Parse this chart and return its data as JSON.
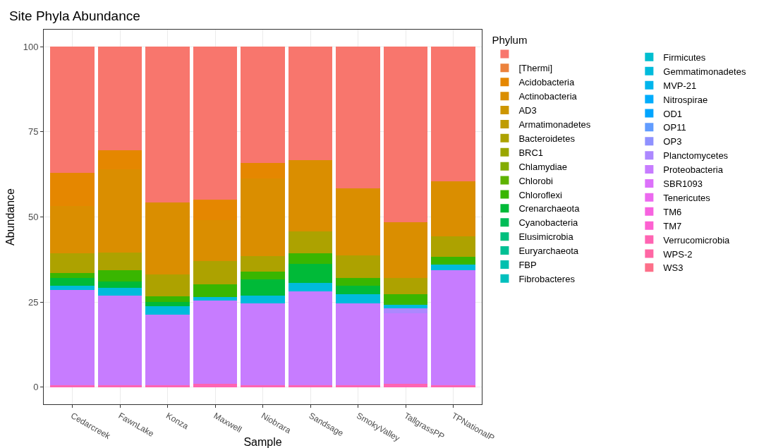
{
  "chart_data": {
    "type": "bar",
    "stacked": true,
    "title": "Site Phyla Abundance",
    "xlabel": "Sample",
    "ylabel": "Abundance",
    "legend_title": "Phylum",
    "legend": "right",
    "grid": true,
    "categories": [
      "Cedarcreek",
      "FawnLake",
      "Konza",
      "Maxwell",
      "Niobrara",
      "Sandsage",
      "SmokyValley",
      "TallgrassPP",
      "TPNationalP"
    ],
    "ylim": [
      -5,
      105
    ],
    "yticks": [
      0,
      25,
      50,
      75,
      100
    ],
    "series": [
      {
        "name": "WS3",
        "color": "#FD6F89",
        "values": [
          null,
          null,
          null,
          null,
          null,
          null,
          null,
          null,
          null
        ]
      },
      {
        "name": "WPS-2",
        "color": "#FF67A4",
        "values": [
          null,
          null,
          null,
          null,
          null,
          null,
          null,
          null,
          null
        ]
      },
      {
        "name": "Verrucomicrobia",
        "color": "#FF64B2",
        "values": [
          0.6,
          0.6,
          0.6,
          1.0,
          0.6,
          0.6,
          0.6,
          1.0,
          0.6
        ]
      },
      {
        "name": "TM7",
        "color": "#FD61D1",
        "values": [
          null,
          null,
          null,
          null,
          null,
          null,
          null,
          null,
          null
        ]
      },
      {
        "name": "TM6",
        "color": "#F763E0",
        "values": [
          null,
          null,
          null,
          null,
          null,
          null,
          null,
          null,
          null
        ]
      },
      {
        "name": "Tenericutes",
        "color": "#EC69EF",
        "values": [
          null,
          null,
          null,
          null,
          null,
          null,
          null,
          null,
          null
        ]
      },
      {
        "name": "SBR1093",
        "color": "#DC71FA",
        "values": [
          null,
          null,
          null,
          null,
          null,
          null,
          null,
          null,
          null
        ]
      },
      {
        "name": "Proteobacteria",
        "color": "#C77CFF",
        "values": [
          28.0,
          26.3,
          20.7,
          24.4,
          24.1,
          27.5,
          24.1,
          20.7,
          33.8
        ]
      },
      {
        "name": "Planctomycetes",
        "color": "#AC88FF",
        "values": [
          null,
          null,
          null,
          null,
          null,
          null,
          null,
          1.4,
          null
        ]
      },
      {
        "name": "OP3",
        "color": "#8F91FF",
        "values": [
          null,
          null,
          null,
          null,
          null,
          null,
          null,
          null,
          null
        ]
      },
      {
        "name": "OP11",
        "color": "#619CFF",
        "values": [
          null,
          null,
          null,
          null,
          null,
          null,
          null,
          null,
          null
        ]
      },
      {
        "name": "OD1",
        "color": "#00A5FF",
        "values": [
          null,
          null,
          null,
          null,
          null,
          null,
          null,
          null,
          null
        ]
      },
      {
        "name": "Nitrospirae",
        "color": "#00ACFC",
        "values": [
          null,
          null,
          null,
          null,
          null,
          null,
          null,
          null,
          null
        ]
      },
      {
        "name": "MVP-21",
        "color": "#00B5EC",
        "values": [
          null,
          null,
          null,
          null,
          null,
          null,
          null,
          null,
          null
        ]
      },
      {
        "name": "Gemmatimonadetes",
        "color": "#00BBDC",
        "values": [
          1.1,
          2.2,
          2.5,
          1.1,
          2.3,
          2.6,
          2.7,
          1.2,
          1.7
        ]
      },
      {
        "name": "Firmicutes",
        "color": "#00BECF",
        "values": [
          null,
          null,
          null,
          null,
          null,
          null,
          null,
          null,
          null
        ]
      },
      {
        "name": "Fibrobacteres",
        "color": "#00BFBD",
        "values": [
          null,
          null,
          null,
          null,
          null,
          null,
          null,
          null,
          null
        ]
      },
      {
        "name": "FBP",
        "color": "#00C0AF",
        "values": [
          null,
          null,
          null,
          null,
          null,
          null,
          null,
          null,
          null
        ]
      },
      {
        "name": "Euryarchaeota",
        "color": "#00C094",
        "values": [
          null,
          null,
          null,
          null,
          null,
          null,
          null,
          null,
          null
        ]
      },
      {
        "name": "Elusimicrobia",
        "color": "#00BF7D",
        "values": [
          null,
          null,
          null,
          null,
          null,
          null,
          null,
          null,
          null
        ]
      },
      {
        "name": "Cyanobacteria",
        "color": "#00BC57",
        "values": [
          null,
          null,
          null,
          null,
          null,
          null,
          null,
          null,
          null
        ]
      },
      {
        "name": "Crenarchaeota",
        "color": "#00BA38",
        "values": [
          2.4,
          2.0,
          1.2,
          null,
          4.6,
          5.6,
          2.5,
          null,
          null
        ]
      },
      {
        "name": "Chloroflexi",
        "color": "#39B600",
        "values": [
          1.4,
          3.3,
          1.6,
          3.7,
          2.4,
          3.0,
          2.1,
          3.1,
          2.3
        ]
      },
      {
        "name": "Chlorobi",
        "color": "#5EB300",
        "values": [
          null,
          null,
          null,
          null,
          null,
          null,
          null,
          null,
          null
        ]
      },
      {
        "name": "Chlamydiae",
        "color": "#83AC00",
        "values": [
          null,
          null,
          null,
          null,
          null,
          null,
          null,
          null,
          null
        ]
      },
      {
        "name": "BRC1",
        "color": "#9AA600",
        "values": [
          null,
          null,
          null,
          null,
          null,
          null,
          null,
          null,
          null
        ]
      },
      {
        "name": "Bacteroidetes",
        "color": "#ADA200",
        "values": [
          5.8,
          5.1,
          6.6,
          6.8,
          4.6,
          6.4,
          6.8,
          4.6,
          6.0
        ]
      },
      {
        "name": "Armatimonadetes",
        "color": "#BF9C00",
        "values": [
          null,
          null,
          null,
          null,
          null,
          null,
          null,
          null,
          null
        ]
      },
      {
        "name": "AD3",
        "color": "#CD9600",
        "values": [
          null,
          null,
          null,
          null,
          null,
          null,
          null,
          null,
          null
        ]
      },
      {
        "name": "Actinobacteria",
        "color": "#DA8E00",
        "values": [
          13.9,
          24.4,
          21.0,
          12.1,
          22.7,
          21.0,
          19.6,
          16.4,
          16.0
        ]
      },
      {
        "name": "Acidobacteria",
        "color": "#E58700",
        "values": [
          9.7,
          5.6,
          null,
          5.9,
          4.6,
          null,
          null,
          null,
          null
        ]
      },
      {
        "name": "[Thermi]",
        "color": "#EC823C",
        "values": [
          null,
          null,
          null,
          null,
          null,
          null,
          null,
          null,
          null
        ]
      },
      {
        "color": "#F8766D",
        "values": [
          37.1,
          30.5,
          45.9,
          45.0,
          34.1,
          33.3,
          41.6,
          51.6,
          39.6
        ]
      }
    ]
  }
}
